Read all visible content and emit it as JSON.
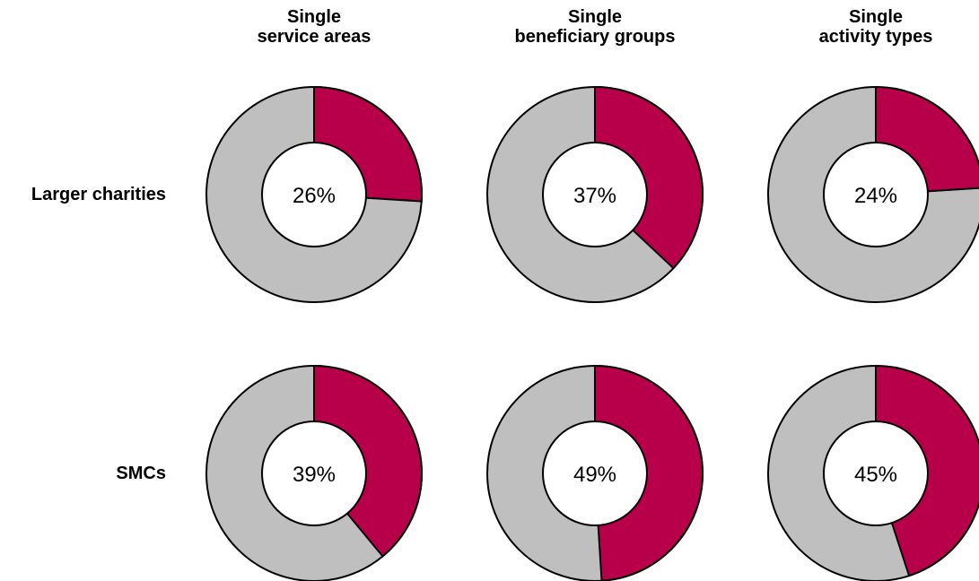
{
  "chart_data": {
    "type": "pie",
    "columns": [
      "Single\nservice areas",
      "Single\nbeneficiary groups",
      "Single\nactivity types"
    ],
    "rows": [
      "Larger charities",
      "SMCs"
    ],
    "values": [
      [
        26,
        37,
        24
      ],
      [
        39,
        49,
        45
      ]
    ],
    "labels": [
      [
        "26%",
        "37%",
        "24%"
      ],
      [
        "39%",
        "49%",
        "45%"
      ]
    ],
    "colors": {
      "highlight": "#b8004a",
      "remainder": "#bfbfbf",
      "center": "#ffffff",
      "stroke": "#000000"
    }
  }
}
